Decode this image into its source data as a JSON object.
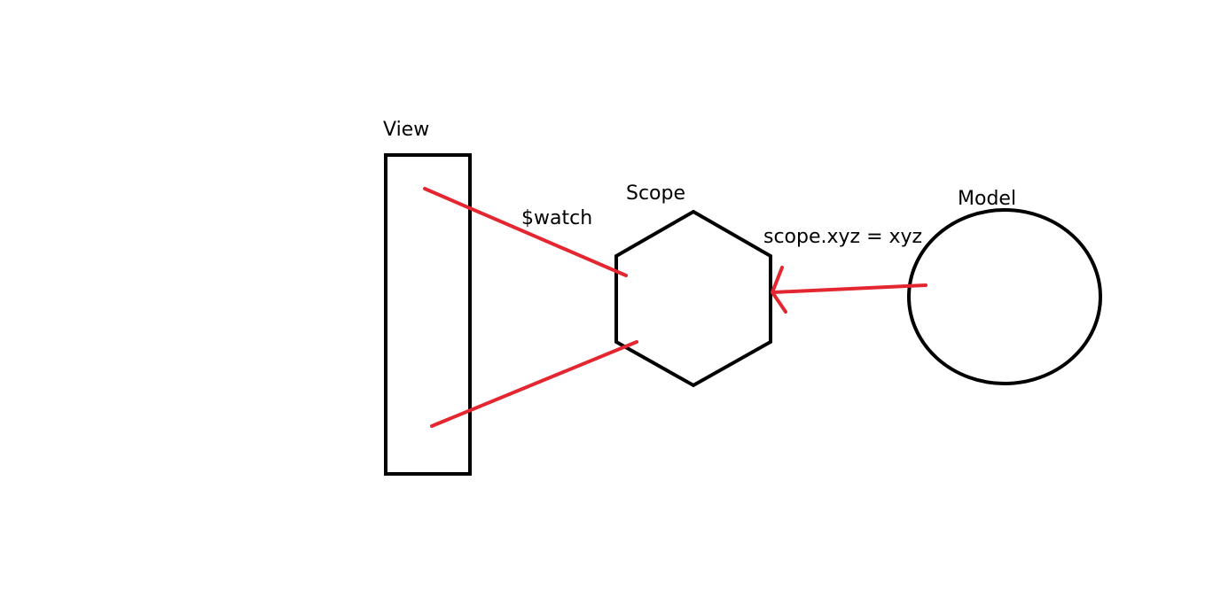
{
  "nodes": {
    "view": {
      "label": "View"
    },
    "scope": {
      "label": "Scope"
    },
    "model": {
      "label": "Model"
    }
  },
  "edges": {
    "watch": {
      "label": "$watch"
    },
    "assign": {
      "label": "scope.xyz = xyz"
    }
  },
  "colors": {
    "shape_stroke": "#000000",
    "connector": "#e3262f",
    "background": "#ffffff"
  }
}
